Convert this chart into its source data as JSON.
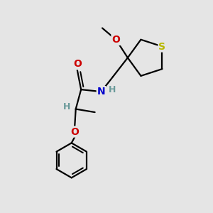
{
  "background_color": "#e5e5e5",
  "bond_color": "#000000",
  "S_color": "#b8b800",
  "O_color": "#cc0000",
  "N_color": "#0000cc",
  "H_color": "#6a9a9a",
  "lw": 1.6,
  "xlim": [
    0,
    10
  ],
  "ylim": [
    0,
    10
  ],
  "figsize": [
    3.0,
    3.0
  ],
  "dpi": 100
}
